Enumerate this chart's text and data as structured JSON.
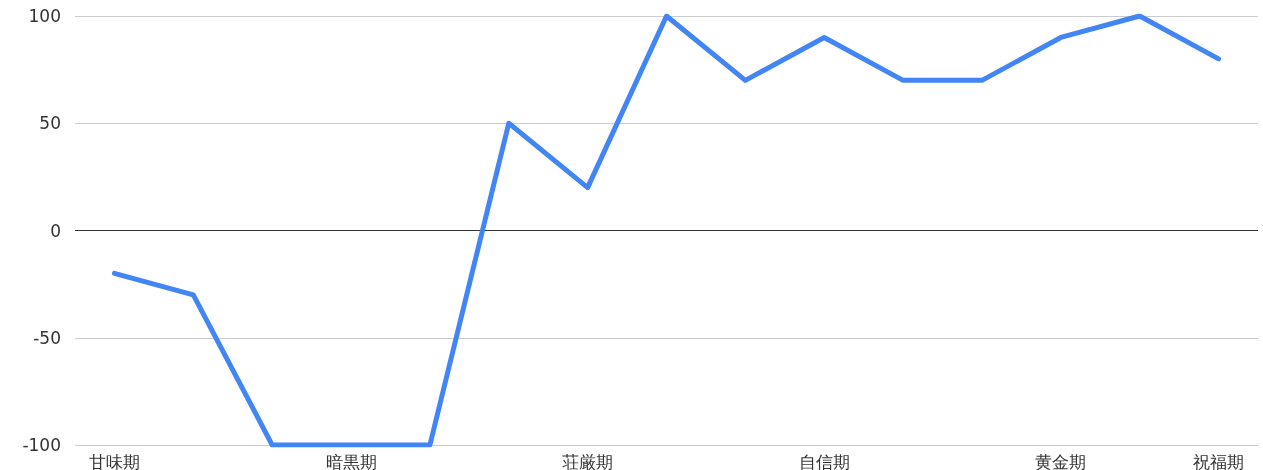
{
  "chart_data": {
    "type": "line",
    "categories": [
      "甘味期",
      null,
      null,
      "暗黒期",
      null,
      null,
      "荘厳期",
      null,
      null,
      "自信期",
      null,
      null,
      "黄金期",
      null,
      "祝福期"
    ],
    "series": [
      {
        "color": "#4285f4",
        "values": [
          -20,
          -30,
          -100,
          -100,
          -100,
          50,
          20,
          100,
          70,
          90,
          70,
          70,
          90,
          100,
          80
        ]
      }
    ],
    "ylim": [
      -100,
      100
    ],
    "yticks": [
      -100,
      -50,
      0,
      50,
      100
    ],
    "grid": "y",
    "marker": "none",
    "line_style": "solid"
  }
}
